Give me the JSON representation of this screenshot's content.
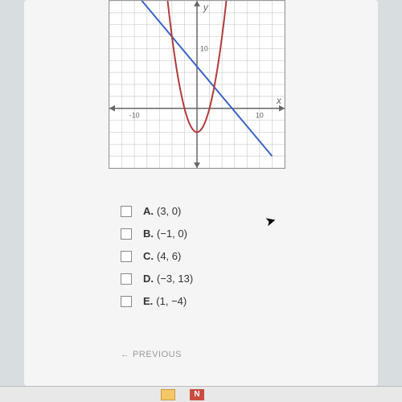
{
  "chart": {
    "type": "cartesian-plot",
    "background_color": "#ffffff",
    "grid_color": "#cfcfcf",
    "axis_color": "#666666",
    "x_axis_label": "x",
    "y_axis_label": "y",
    "label_fontsize": 12,
    "label_color": "#666666",
    "xlim": [
      -14,
      14
    ],
    "ylim": [
      -10,
      18
    ],
    "tick_step": 2,
    "x_ticks": [
      {
        "pos": -10,
        "label": "-10"
      },
      {
        "pos": 10,
        "label": "10"
      }
    ],
    "y_ticks": [
      {
        "pos": 10,
        "label": "10"
      }
    ],
    "line": {
      "color": "#3a63c7",
      "width": 2,
      "points": [
        [
          -12,
          22
        ],
        [
          12,
          -8
        ]
      ]
    },
    "parabola": {
      "color": "#b23a3a",
      "width": 2,
      "vertex": [
        0,
        -4
      ],
      "a": 1,
      "x_range": [
        -5,
        5
      ]
    }
  },
  "answers": [
    {
      "letter": "A.",
      "text": "(3, 0)"
    },
    {
      "letter": "B.",
      "text": "(−1, 0)"
    },
    {
      "letter": "C.",
      "text": "(4, 6)"
    },
    {
      "letter": "D.",
      "text": "(−3, 13)"
    },
    {
      "letter": "E.",
      "text": "(1, −4)"
    }
  ],
  "navigation": {
    "previous": "← PREVIOUS"
  },
  "taskbar": {
    "item1": "N",
    "item2": ""
  }
}
